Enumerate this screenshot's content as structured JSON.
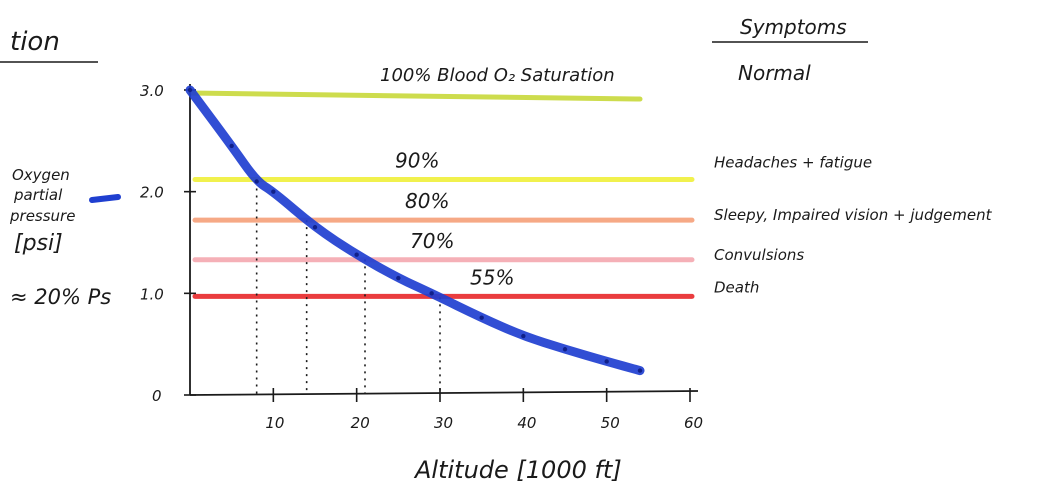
{
  "header": {
    "title_fragment": "tion",
    "symptoms_title": "Symptoms"
  },
  "colors": {
    "curve": "#1f3fd0",
    "ink": "#1a1a1a",
    "level_100": "#c8d93a",
    "level_90": "#f0f03a",
    "level_80": "#f6a07a",
    "level_70": "#f5a8b0",
    "level_55": "#e8282a"
  },
  "chart_data": {
    "type": "line",
    "title": "",
    "xlabel": "Altitude [1000 ft]",
    "ylabel_lines": [
      "Oxygen",
      "partial",
      "pressure",
      "[psi]"
    ],
    "ylabel_note": "≈ 20% Ps",
    "xlim": [
      0,
      60
    ],
    "ylim": [
      0,
      3.0
    ],
    "x_ticks": [
      10,
      20,
      30,
      40,
      50,
      60
    ],
    "y_ticks": [
      {
        "value": 0,
        "label": "0"
      },
      {
        "value": 1.0,
        "label": "1.0"
      },
      {
        "value": 2.0,
        "label": "2.0"
      },
      {
        "value": 3.0,
        "label": "3.0"
      }
    ],
    "series": [
      {
        "name": "Oxygen partial pressure",
        "x": [
          0,
          5,
          8,
          10,
          15,
          20,
          25,
          29,
          35,
          40,
          45,
          50,
          54
        ],
        "y": [
          3.0,
          2.45,
          2.1,
          2.0,
          1.65,
          1.38,
          1.15,
          1.0,
          0.76,
          0.58,
          0.45,
          0.33,
          0.24
        ]
      }
    ],
    "saturation_levels": [
      {
        "label": "100%  Blood O₂ Saturation",
        "y": 2.97,
        "symptom": "Normal",
        "color_key": "level_100"
      },
      {
        "label": "90%",
        "y": 2.12,
        "symptom": "Headaches + fatigue",
        "color_key": "level_90"
      },
      {
        "label": "80%",
        "y": 1.72,
        "symptom": "Sleepy, Impaired vision + judgement",
        "color_key": "level_80"
      },
      {
        "label": "70%",
        "y": 1.33,
        "symptom": "Convulsions",
        "color_key": "level_70"
      },
      {
        "label": "55%",
        "y": 0.97,
        "symptom": "Death",
        "color_key": "level_55"
      }
    ],
    "drop_lines_x": [
      8,
      14,
      21,
      30
    ],
    "grid": false,
    "legend": "none"
  }
}
